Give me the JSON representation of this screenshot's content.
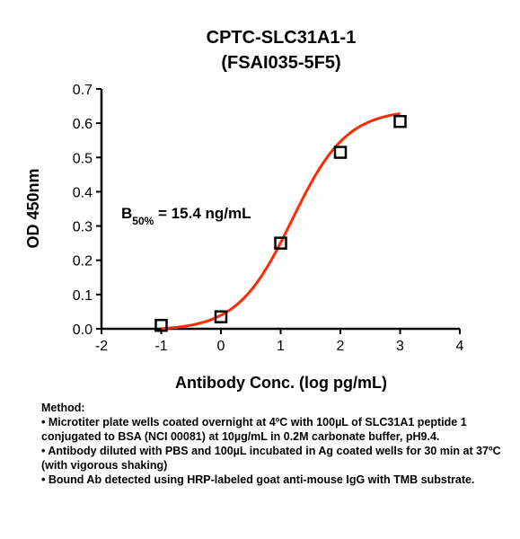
{
  "chart_data": {
    "type": "scatter",
    "title": "CPTC-SLC31A1-1",
    "subtitle": "(FSAI035-5F5)",
    "xlabel": "Antibody Conc. (log pg/mL)",
    "ylabel": "OD 450nm",
    "xlim": [
      -2,
      4
    ],
    "ylim": [
      0,
      0.7
    ],
    "xticks": [
      "-2",
      "-1",
      "0",
      "1",
      "2",
      "3",
      "4"
    ],
    "yticks": [
      "0.0",
      "0.1",
      "0.2",
      "0.3",
      "0.4",
      "0.5",
      "0.6",
      "0.7"
    ],
    "points": [
      {
        "x": -1,
        "y": 0.01
      },
      {
        "x": 0,
        "y": 0.035
      },
      {
        "x": 1,
        "y": 0.25
      },
      {
        "x": 2,
        "y": 0.515
      },
      {
        "x": 3,
        "y": 0.605
      }
    ],
    "fit_curve": {
      "type": "4PL sigmoid",
      "bottom": -0.005,
      "top": 0.64,
      "logEC50": 1.19,
      "hill": 0.95,
      "x_range": [
        -1,
        3
      ],
      "color": "#ff2a00"
    },
    "marker": "open-square",
    "annotation": {
      "main": "B",
      "sub": "50%",
      "rest": " = 15.4 ng/mL"
    },
    "grid": false,
    "legend": "none"
  },
  "methods": {
    "heading": "Method:",
    "lines": [
      "• Microtiter plate wells coated overnight at 4ºC  with 100µL of SLC31A1 peptide 1 conjugated to BSA (NCI 00081) at 10µg/mL in 0.2M carbonate buffer, pH9.4.",
      "• Antibody diluted with PBS and 100µL incubated in Ag coated wells for 30 min at 37ºC (with vigorous shaking)",
      "• Bound Ab detected using HRP-labeled goat anti-mouse IgG with TMB substrate."
    ]
  }
}
